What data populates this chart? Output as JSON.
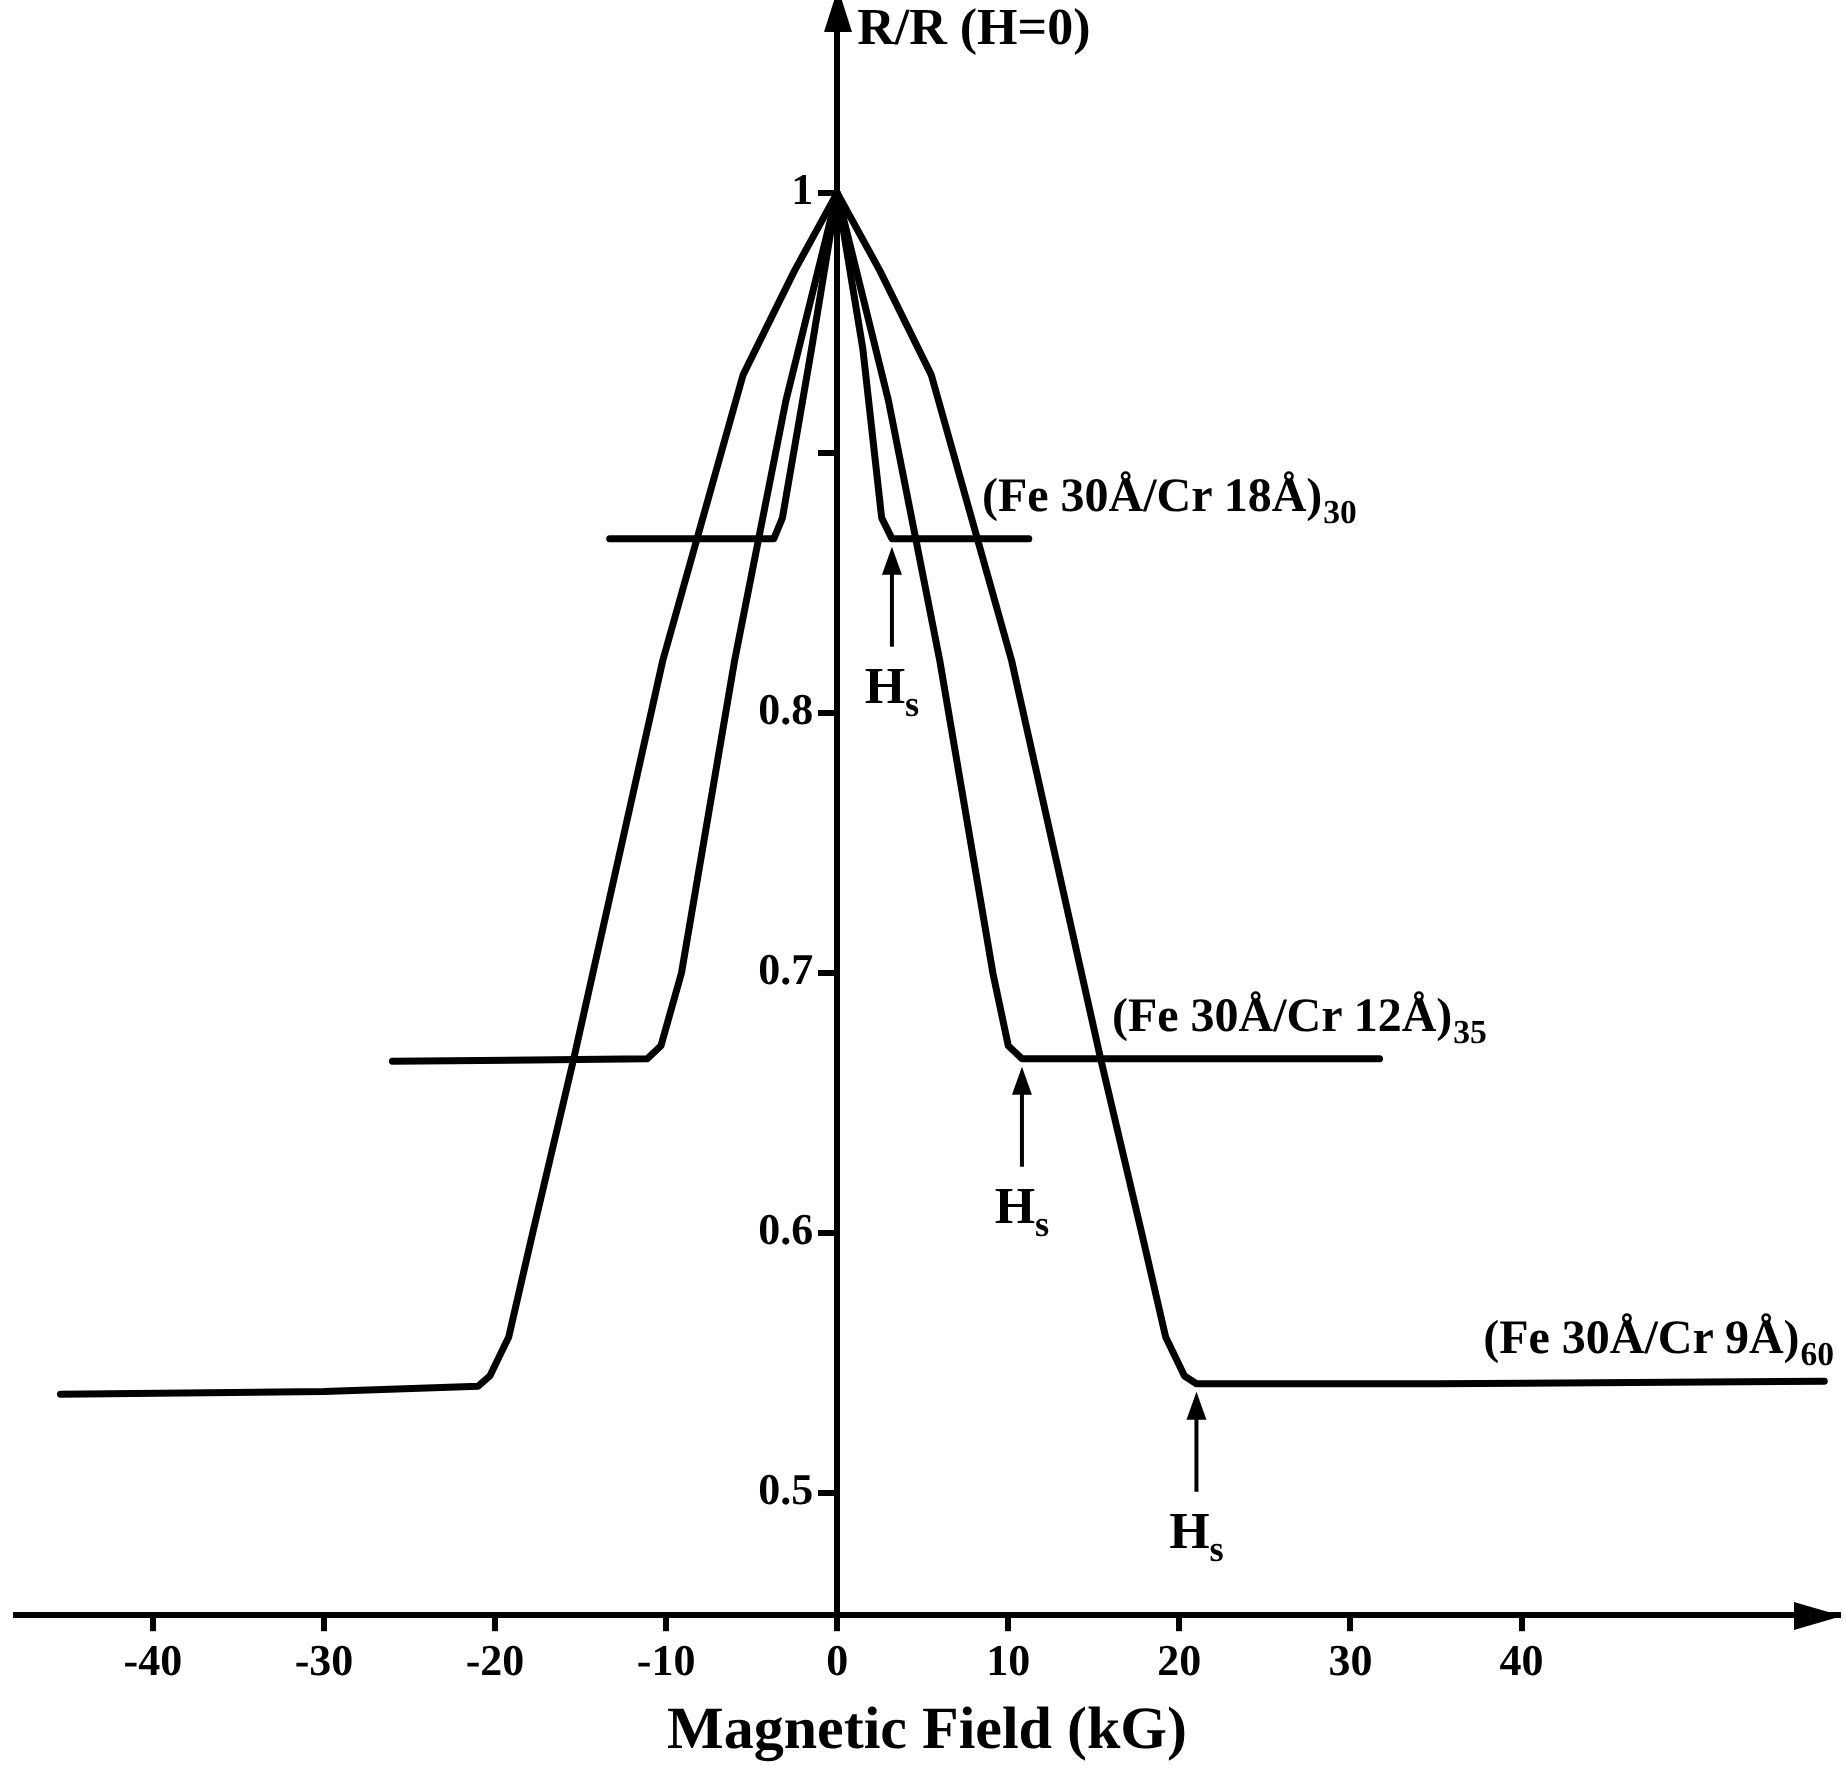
{
  "chart_data": {
    "type": "line",
    "xlabel": "Magnetic Field (kG)",
    "ylabel": "R/R (H=0)",
    "legend": false,
    "xlim": [
      -48,
      58.5
    ],
    "xticks": [
      -40,
      -30,
      -20,
      -10,
      0,
      10,
      20,
      30,
      40
    ],
    "ylim": [
      0.453,
      1.068
    ],
    "yticks": [
      0.5,
      0.6,
      0.7,
      0.8,
      {
        "value": 0.9,
        "label": null
      },
      1
    ],
    "series": [
      {
        "name": "(Fe 30Å/Cr 18Å)$_{30}$",
        "color": "#000000",
        "x": [
          -13.3,
          -3.7,
          -3.2,
          -1.5,
          0,
          1.5,
          2.6,
          3.2,
          11.2
        ],
        "values": [
          0.867,
          0.867,
          0.875,
          0.94,
          1,
          0.94,
          0.875,
          0.867,
          0.867
        ]
      },
      {
        "name": "(Fe 30Å/Cr 12Å)$_{35}$",
        "color": "#000000",
        "x": [
          -26,
          -11.1,
          -10.3,
          -9.1,
          -6,
          -3,
          0,
          3,
          6,
          9.1,
          10,
          10.8,
          31.7
        ],
        "values": [
          0.666,
          0.667,
          0.672,
          0.7,
          0.82,
          0.92,
          1,
          0.92,
          0.82,
          0.7,
          0.672,
          0.667,
          0.667
        ]
      },
      {
        "name": "(Fe 30Å/Cr 9Å)$_{60}$",
        "color": "#000000",
        "x": [
          -45.4,
          -30,
          -21,
          -20.3,
          -19.2,
          -17.8,
          -15.4,
          -10.2,
          -5.5,
          -2.5,
          0,
          2.5,
          5.5,
          10.2,
          15.4,
          17.8,
          19.2,
          20.3,
          21,
          35,
          57.7
        ],
        "values": [
          0.538,
          0.539,
          0.541,
          0.545,
          0.56,
          0.6,
          0.667,
          0.82,
          0.93,
          0.97,
          1,
          0.97,
          0.93,
          0.82,
          0.667,
          0.6,
          0.56,
          0.545,
          0.542,
          0.542,
          0.543
        ]
      }
    ],
    "annotations": [
      {
        "text": "H$_{s}$",
        "x": 3.2,
        "y": 0.867
      },
      {
        "text": "H$_{s}$",
        "x": 10.8,
        "y": 0.667
      },
      {
        "text": "H$_{s}$",
        "x": 21,
        "y": 0.542
      }
    ]
  }
}
